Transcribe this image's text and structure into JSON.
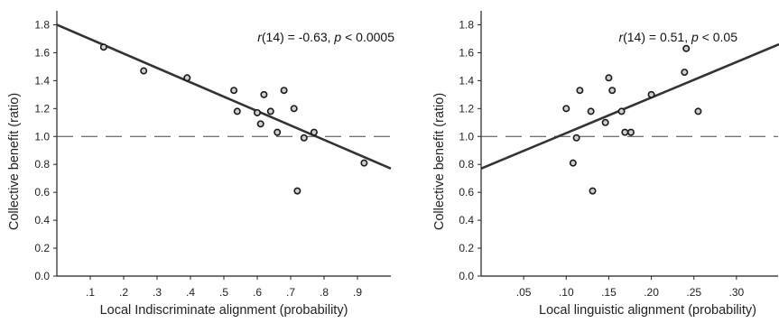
{
  "chart_data": [
    {
      "type": "scatter",
      "title": "",
      "annotation": "r(14) = -0.63, p < 0.0005",
      "xlabel": "Local Indiscriminate alignment (probability)",
      "ylabel": "Collective benefit (ratio)",
      "xlim": [
        0.0,
        1.0
      ],
      "ylim": [
        0.0,
        1.9
      ],
      "xticks": [
        0.1,
        0.2,
        0.3,
        0.4,
        0.5,
        0.6,
        0.7,
        0.8,
        0.9
      ],
      "xtick_labels": [
        ".1",
        ".2",
        ".3",
        ".4",
        ".5",
        ".6",
        ".7",
        ".8",
        ".9"
      ],
      "yticks": [
        0.0,
        0.2,
        0.4,
        0.6,
        0.8,
        1.0,
        1.2,
        1.4,
        1.6,
        1.8
      ],
      "ytick_labels": [
        "0.0",
        "0.2",
        "0.4",
        "0.6",
        "0.8",
        "1.0",
        "1.2",
        "1.4",
        "1.6",
        "1.8"
      ],
      "reference_line": {
        "y": 1.0,
        "style": "dashed"
      },
      "regression_line": {
        "x": [
          0.0,
          1.0
        ],
        "y": [
          1.8,
          0.77
        ]
      },
      "x": [
        0.14,
        0.26,
        0.39,
        0.53,
        0.54,
        0.6,
        0.61,
        0.62,
        0.64,
        0.66,
        0.68,
        0.71,
        0.72,
        0.74,
        0.77,
        0.92
      ],
      "y": [
        1.64,
        1.47,
        1.42,
        1.33,
        1.18,
        1.17,
        1.09,
        1.3,
        1.18,
        1.03,
        1.33,
        1.2,
        0.61,
        0.99,
        1.03,
        0.81
      ],
      "grid": false
    },
    {
      "type": "scatter",
      "title": "",
      "annotation": "r(14) = 0.51, p < 0.05",
      "xlabel": "Local linguistic alignment (probability)",
      "ylabel": "Collective benefit (ratio)",
      "xlim": [
        0.0,
        0.35
      ],
      "ylim": [
        0.0,
        1.9
      ],
      "xticks": [
        0.05,
        0.1,
        0.15,
        0.2,
        0.25,
        0.3
      ],
      "xtick_labels": [
        ".05",
        ".10",
        ".15",
        ".20",
        ".25",
        ".30"
      ],
      "yticks": [
        0.0,
        0.2,
        0.4,
        0.6,
        0.8,
        1.0,
        1.2,
        1.4,
        1.6,
        1.8
      ],
      "ytick_labels": [
        "0.0",
        "0.2",
        "0.4",
        "0.6",
        "0.8",
        "1.0",
        "1.2",
        "1.4",
        "1.6",
        "1.8"
      ],
      "reference_line": {
        "y": 1.0,
        "style": "dashed"
      },
      "regression_line": {
        "x": [
          0.0,
          0.35
        ],
        "y": [
          0.77,
          1.66
        ]
      },
      "x": [
        0.1,
        0.108,
        0.112,
        0.116,
        0.129,
        0.131,
        0.146,
        0.15,
        0.154,
        0.165,
        0.169,
        0.176,
        0.2,
        0.239,
        0.241,
        0.255
      ],
      "y": [
        1.2,
        0.81,
        0.99,
        1.33,
        1.18,
        0.61,
        1.1,
        1.42,
        1.33,
        1.18,
        1.03,
        1.03,
        1.3,
        1.46,
        1.63,
        1.18
      ],
      "grid": false
    }
  ]
}
